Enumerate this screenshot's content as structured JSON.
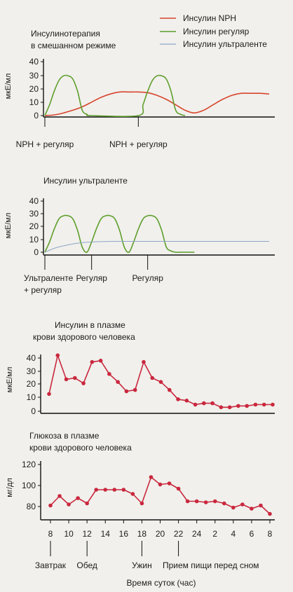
{
  "legend": {
    "items": [
      {
        "label": "Инсулин NPH",
        "color": "#d8452e"
      },
      {
        "label": "Инсулин регуляр",
        "color": "#5e9e2c"
      },
      {
        "label": "Инсулин ультраленте",
        "color": "#8ea6c6"
      }
    ]
  },
  "chart_data": [
    {
      "type": "line",
      "title": "Инсулинотерапия\nв смешанном режиме",
      "ylabel": "мкЕ/мл",
      "yticks": [
        "40",
        "30",
        "20",
        "10",
        "0"
      ],
      "ylim": [
        0,
        40
      ],
      "xlim": [
        8,
        32
      ],
      "annotations": [
        {
          "label": "NPH + регуляр",
          "x": 8
        },
        {
          "label": "NPH + регуляр",
          "x": 18
        }
      ],
      "series": [
        {
          "name": "Инсулин NPH",
          "color": "#d8452e",
          "x": [
            8,
            9,
            10,
            11,
            12,
            13,
            14,
            15,
            16,
            17,
            18,
            19,
            20,
            21,
            22,
            23,
            24,
            25,
            26,
            27,
            28,
            29,
            30,
            31,
            32
          ],
          "values": [
            0,
            0.5,
            2,
            4,
            6.5,
            10,
            13.5,
            16,
            17.5,
            17.5,
            17.5,
            17,
            15,
            12,
            8,
            4,
            2,
            4,
            8,
            12,
            15,
            16.5,
            16.5,
            16.5,
            16
          ]
        },
        {
          "name": "Инсулин регуляр",
          "color": "#5e9e2c",
          "x": [
            8,
            8.5,
            9,
            9.5,
            10,
            10.5,
            11,
            11.5,
            12,
            12.5,
            13,
            18,
            18.5,
            19,
            19.5,
            20,
            20.5,
            21,
            21.5,
            22,
            22.5,
            23
          ],
          "values": [
            0,
            8,
            18,
            26,
            29.5,
            29.5,
            27,
            18,
            4,
            1,
            0,
            0,
            8,
            18,
            26,
            29.5,
            29.5,
            27,
            18,
            4,
            1,
            0
          ]
        }
      ]
    },
    {
      "type": "line",
      "title": "Инсулин ультраленте",
      "ylabel": "мкЕ/мл",
      "yticks": [
        "40",
        "30",
        "20",
        "10",
        "0"
      ],
      "ylim": [
        0,
        40
      ],
      "xlim": [
        8,
        32
      ],
      "annotations": [
        {
          "label": "Ультраленте\n+ регуляр",
          "x": 8
        },
        {
          "label": "Регуляр",
          "x": 13
        },
        {
          "label": "Регуляр",
          "x": 19
        }
      ],
      "series": [
        {
          "name": "Инсулин регуляр",
          "color": "#5e9e2c",
          "x": [
            8,
            8.5,
            9,
            9.5,
            10,
            10.5,
            11,
            11.5,
            12,
            12.5,
            13,
            13.5,
            14,
            14.5,
            15,
            15.5,
            16,
            16.5,
            17,
            17.5,
            18,
            18.5,
            19,
            19.5,
            20,
            20.5,
            21,
            21.5,
            22,
            22.5,
            23,
            23.5,
            24
          ],
          "values": [
            0,
            8,
            18,
            26,
            28.5,
            28.5,
            26,
            17,
            4,
            0,
            8,
            18,
            26,
            28.5,
            28.5,
            26,
            17,
            4,
            0,
            8,
            18,
            26,
            28.5,
            28.5,
            26,
            17,
            4,
            1,
            0,
            0,
            0,
            0,
            0
          ]
        },
        {
          "name": "Инсулин ультраленте",
          "color": "#8ea6c6",
          "x": [
            8,
            9,
            10,
            11,
            12,
            13,
            14,
            16,
            18,
            20,
            22,
            24,
            26,
            28,
            30,
            32
          ],
          "values": [
            0,
            3,
            5,
            6.5,
            7.5,
            8,
            8.3,
            8.5,
            8.5,
            8.5,
            8.5,
            8.5,
            8.5,
            8.5,
            8.5,
            8.5
          ]
        }
      ]
    },
    {
      "type": "line",
      "title": "Инсулин в плазме\nкрови здорового человека",
      "ylabel": "мкЕ/мл",
      "yticks": [
        "40",
        "30",
        "20",
        "10",
        "0"
      ],
      "ylim": [
        0,
        45
      ],
      "xlim": [
        8,
        34
      ],
      "series": [
        {
          "name": "",
          "color": "#c9283e",
          "x": [
            8,
            9,
            10,
            11,
            12,
            13,
            14,
            15,
            16,
            17,
            18,
            19,
            20,
            21,
            22,
            23,
            24,
            25,
            26,
            27,
            28,
            29,
            30,
            31,
            32,
            33,
            34
          ],
          "values": [
            13,
            42,
            24,
            25,
            21,
            37,
            38,
            28,
            22,
            15,
            16,
            37,
            25,
            22,
            16,
            9,
            8,
            5,
            6,
            6,
            3,
            3,
            4,
            4,
            5,
            5,
            5
          ]
        }
      ]
    },
    {
      "type": "line",
      "title": "Глюкоза в плазме\nкрови здорового человека",
      "ylabel": "мг/дл",
      "yticks": [
        "120",
        "100",
        "80"
      ],
      "ylim": [
        70,
        125
      ],
      "xlim": [
        8,
        32
      ],
      "xlabel": "Время суток (час)",
      "xticks": [
        "8",
        "10",
        "12",
        "14",
        "16",
        "18",
        "20",
        "22",
        "24",
        "2",
        "4",
        "6",
        "8"
      ],
      "meals": [
        {
          "label": "Завтрак",
          "x": 8
        },
        {
          "label": "Обед",
          "x": 12
        },
        {
          "label": "Ужин",
          "x": 18
        },
        {
          "label": "Прием пищи перед сном",
          "x": 22
        }
      ],
      "series": [
        {
          "name": "",
          "color": "#c9283e",
          "x": [
            8,
            9,
            10,
            11,
            12,
            13,
            14,
            15,
            16,
            17,
            18,
            19,
            20,
            21,
            22,
            23,
            24,
            25,
            26,
            27,
            28,
            29,
            30,
            31,
            32
          ],
          "values": [
            81,
            90,
            82,
            88,
            83,
            96,
            96,
            96,
            96,
            92,
            83,
            108,
            101,
            102,
            97,
            85,
            85,
            84,
            85,
            83,
            79,
            82,
            78,
            81,
            73
          ]
        }
      ]
    }
  ]
}
